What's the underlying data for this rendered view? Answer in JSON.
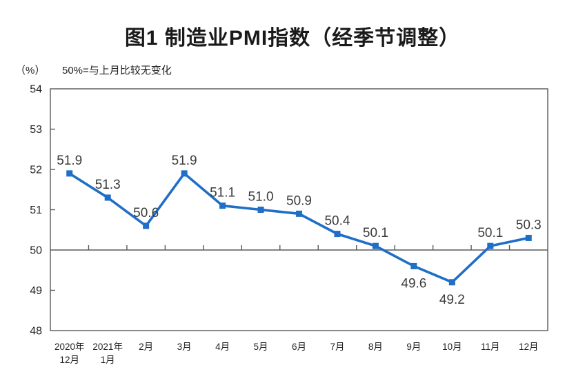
{
  "page": {
    "title": "图1 制造业PMI指数（经季节调整）",
    "unit_label": "（%）",
    "baseline_note": "50%=与上月比较无变化"
  },
  "chart_data": {
    "type": "line",
    "title": "图1 制造业PMI指数（经季节调整）",
    "categories": [
      "2020年\n12月",
      "2021年\n1月",
      "2月",
      "3月",
      "4月",
      "5月",
      "6月",
      "7月",
      "8月",
      "9月",
      "10月",
      "11月",
      "12月"
    ],
    "series": [
      {
        "name": "制造业PMI指数",
        "values": [
          51.9,
          51.3,
          50.6,
          51.9,
          51.1,
          51.0,
          50.9,
          50.4,
          50.1,
          49.6,
          49.2,
          50.1,
          50.3
        ]
      }
    ],
    "data_labels": [
      "51.9",
      "51.3",
      "50.6",
      "51.9",
      "51.1",
      "51.0",
      "50.9",
      "50.4",
      "50.1",
      "49.6",
      "49.2",
      "50.1",
      "50.3"
    ],
    "data_label_side": [
      "above",
      "above",
      "above",
      "above",
      "above",
      "above",
      "above",
      "above",
      "above",
      "below",
      "below",
      "above",
      "above"
    ],
    "xlabel": "",
    "ylabel": "（%）",
    "ylim": [
      48,
      54
    ],
    "yticks": [
      48,
      49,
      50,
      51,
      52,
      53,
      54
    ],
    "reference_line_y": 50,
    "grid": false,
    "legend": "none",
    "colors": {
      "line": "#1f6ec7",
      "marker": "#1f6ec7",
      "axis": "#595959",
      "data_label": "#3a3a3a",
      "tick_label": "#222222"
    }
  }
}
